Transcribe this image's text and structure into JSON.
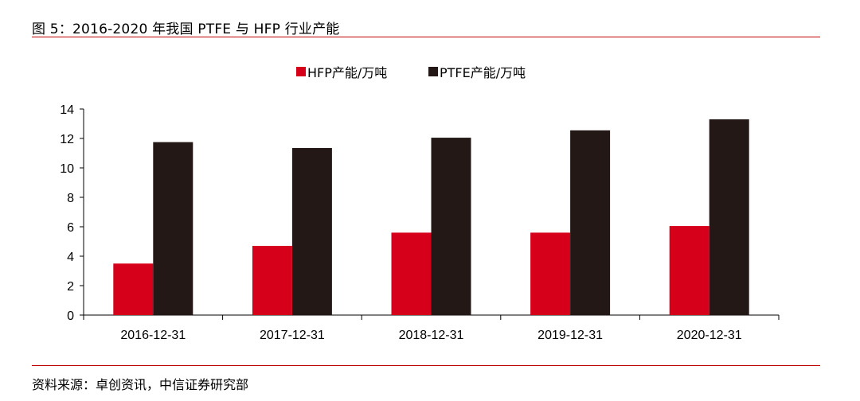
{
  "header": {
    "title": "图 5：2016-2020 年我国 PTFE 与 HFP 行业产能"
  },
  "footer": {
    "source": "资料来源：卓创资讯，中信证券研究部"
  },
  "colors": {
    "accent_rule": "#c00000",
    "hfp": "#d7001a",
    "ptfe": "#231815"
  },
  "chart_data": {
    "type": "bar",
    "title": "",
    "xlabel": "",
    "ylabel": "",
    "categories": [
      "2016-12-31",
      "2017-12-31",
      "2018-12-31",
      "2019-12-31",
      "2020-12-31"
    ],
    "series": [
      {
        "name": "HFP产能/万吨",
        "color": "#d7001a",
        "values": [
          3.5,
          4.7,
          5.6,
          5.6,
          6.05
        ]
      },
      {
        "name": "PTFE产能/万吨",
        "color": "#231815",
        "values": [
          11.75,
          11.35,
          12.05,
          12.55,
          13.3
        ]
      }
    ],
    "ylim": [
      0,
      14
    ],
    "yticks": [
      0,
      2,
      4,
      6,
      8,
      10,
      12,
      14
    ],
    "grid": false,
    "legend": "top-center"
  }
}
